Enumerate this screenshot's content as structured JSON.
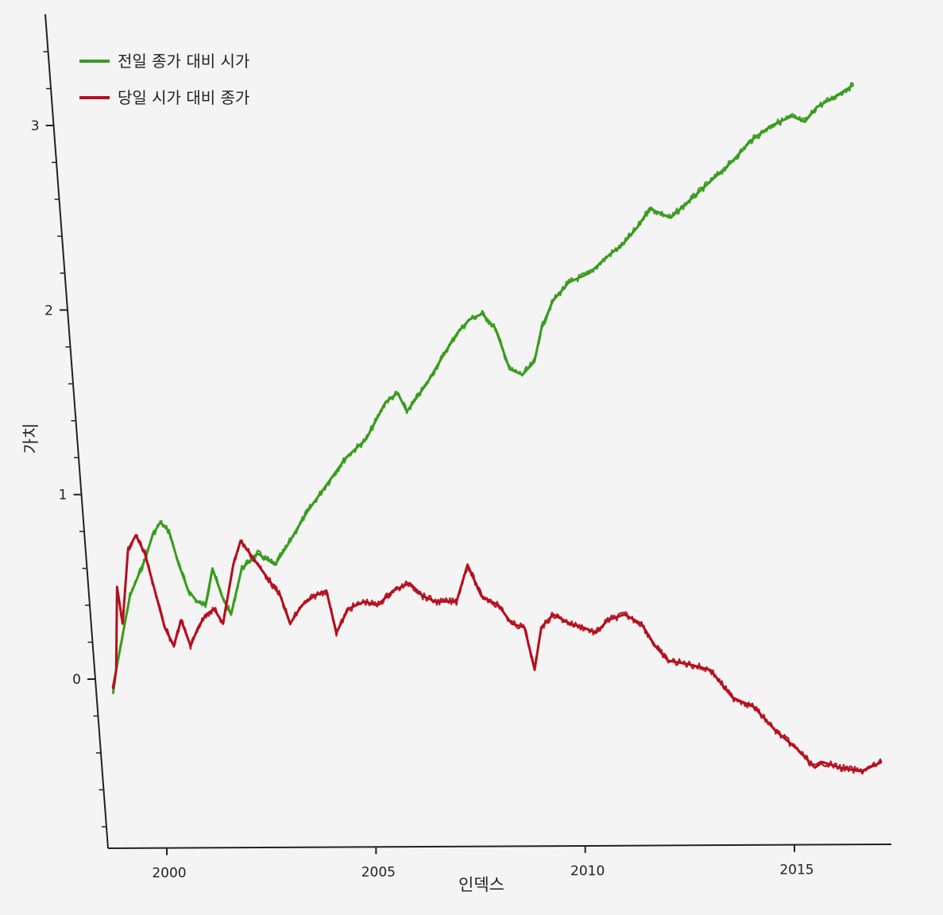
{
  "chart_data": {
    "type": "line",
    "title": "",
    "xlabel": "인덱스",
    "ylabel": "가치",
    "xlim": [
      1998.5,
      2017.3
    ],
    "ylim": [
      -0.9,
      3.5
    ],
    "xticks": [
      2000,
      2005,
      2010,
      2015
    ],
    "xtick_labels": [
      "2000",
      "2005",
      "2010",
      "2015"
    ],
    "yticks": [
      0,
      1,
      2,
      3
    ],
    "ytick_labels": [
      "0",
      "1",
      "2",
      "3"
    ],
    "grid": false,
    "legend_position": "top-left",
    "series": [
      {
        "name": "전일 종가 대비 시가",
        "color": "#3a9b1e",
        "x": [
          1998.7,
          1998.8,
          1999.0,
          1999.2,
          1999.4,
          1999.6,
          1999.8,
          2000.0,
          2000.2,
          2000.4,
          2000.6,
          2000.8,
          2001.0,
          2001.2,
          2001.4,
          2001.6,
          2001.9,
          2002.3,
          2002.7,
          2003.0,
          2003.5,
          2004.0,
          2004.5,
          2005.0,
          2005.5,
          2005.8,
          2006.0,
          2006.5,
          2007.0,
          2007.3,
          2007.6,
          2007.9,
          2008.2,
          2008.5,
          2008.8,
          2009.1,
          2009.3,
          2009.6,
          2010.0,
          2010.5,
          2011.0,
          2011.3,
          2011.7,
          2012.0,
          2012.5,
          2013.0,
          2013.5,
          2014.0,
          2014.5,
          2015.0,
          2015.5,
          2015.8,
          2016.1,
          2016.5,
          2017.0
        ],
        "y": [
          -0.08,
          0.05,
          0.25,
          0.45,
          0.55,
          0.65,
          0.78,
          0.85,
          0.8,
          0.62,
          0.48,
          0.42,
          0.4,
          0.6,
          0.45,
          0.35,
          0.6,
          0.68,
          0.62,
          0.72,
          0.9,
          1.05,
          1.2,
          1.3,
          1.5,
          1.55,
          1.45,
          1.6,
          1.78,
          1.88,
          1.95,
          1.98,
          1.9,
          1.68,
          1.65,
          1.72,
          1.9,
          2.05,
          2.15,
          2.2,
          2.3,
          2.35,
          2.45,
          2.55,
          2.5,
          2.6,
          2.7,
          2.8,
          2.92,
          3.0,
          3.05,
          3.02,
          3.1,
          3.15,
          3.22
        ]
      },
      {
        "name": "당일 시가 대비 종가",
        "color": "#b50f1e",
        "x": [
          1998.7,
          1998.8,
          1998.9,
          1999.0,
          1999.2,
          1999.4,
          1999.6,
          1999.8,
          2000.0,
          2000.2,
          2000.4,
          2000.6,
          2000.8,
          2001.0,
          2001.2,
          2001.4,
          2001.7,
          2001.9,
          2002.2,
          2002.5,
          2002.8,
          2003.0,
          2003.3,
          2003.6,
          2003.9,
          2004.1,
          2004.4,
          2004.8,
          2005.1,
          2005.5,
          2005.9,
          2006.2,
          2006.5,
          2007.0,
          2007.3,
          2007.6,
          2008.0,
          2008.3,
          2008.6,
          2008.8,
          2009.0,
          2009.3,
          2009.7,
          2010.0,
          2010.3,
          2010.6,
          2011.0,
          2011.4,
          2011.7,
          2012.0,
          2012.5,
          2013.0,
          2013.5,
          2014.0,
          2014.5,
          2015.0,
          2015.4,
          2015.6,
          2016.0,
          2016.5,
          2017.0
        ],
        "y": [
          -0.05,
          0.05,
          0.5,
          0.3,
          0.7,
          0.78,
          0.68,
          0.48,
          0.28,
          0.18,
          0.32,
          0.18,
          0.28,
          0.35,
          0.38,
          0.3,
          0.62,
          0.75,
          0.65,
          0.55,
          0.45,
          0.3,
          0.4,
          0.45,
          0.48,
          0.25,
          0.38,
          0.42,
          0.4,
          0.48,
          0.52,
          0.45,
          0.42,
          0.42,
          0.62,
          0.45,
          0.4,
          0.3,
          0.28,
          0.05,
          0.28,
          0.35,
          0.3,
          0.28,
          0.25,
          0.32,
          0.35,
          0.3,
          0.18,
          0.1,
          0.08,
          0.05,
          -0.1,
          -0.15,
          -0.28,
          -0.38,
          -0.48,
          -0.45,
          -0.48,
          -0.5,
          -0.45
        ]
      }
    ]
  }
}
